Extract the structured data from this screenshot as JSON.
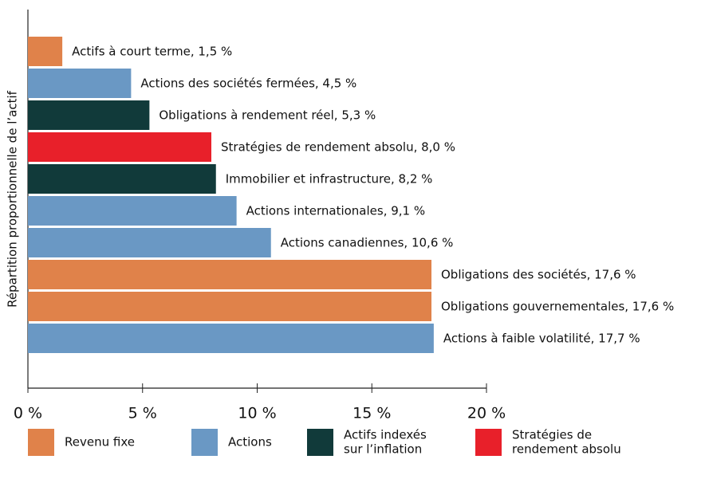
{
  "chart_data": {
    "type": "barh",
    "y_label": "Répartition proportionnelle de l’actif",
    "categories": [
      "Actifs à court terme, 1,5 %",
      "Actions des sociétés fermées, 4,5 %",
      "Obligations à rendement réel, 5,3 %",
      "Stratégies de rendement absolu, 8,0 %",
      "Immobilier et infrastructure, 8,2 %",
      "Actions internationales, 9,1 %",
      "Actions canadiennes, 10,6 %",
      "Obligations des sociétés, 17,6 %",
      "Obligations gouvernementales, 17,6 %",
      "Actions à faible volatilité, 17,7 %"
    ],
    "values": [
      1.5,
      4.5,
      5.3,
      8.0,
      8.2,
      9.1,
      10.6,
      17.6,
      17.6,
      17.7
    ],
    "colors": [
      "#e0824a",
      "#6a98c4",
      "#113a3a",
      "#e8202a",
      "#113a3a",
      "#6a98c4",
      "#6a98c4",
      "#e0824a",
      "#e0824a",
      "#6a98c4"
    ],
    "xlim": [
      0,
      20
    ],
    "xticks": [
      {
        "value": 0,
        "label": "0 %"
      },
      {
        "value": 5,
        "label": "5 %"
      },
      {
        "value": 10,
        "label": "10 %"
      },
      {
        "value": 15,
        "label": "15 %"
      },
      {
        "value": 20,
        "label": "20 %"
      }
    ],
    "legend": [
      {
        "lines": [
          "Revenu fixe"
        ],
        "color": "#e0824a"
      },
      {
        "lines": [
          "Actions"
        ],
        "color": "#6a98c4"
      },
      {
        "lines": [
          "Actifs indexés",
          "sur l’inflation"
        ],
        "color": "#113a3a"
      },
      {
        "lines": [
          "Stratégies de",
          "rendement absolu"
        ],
        "color": "#e8202a"
      }
    ]
  }
}
